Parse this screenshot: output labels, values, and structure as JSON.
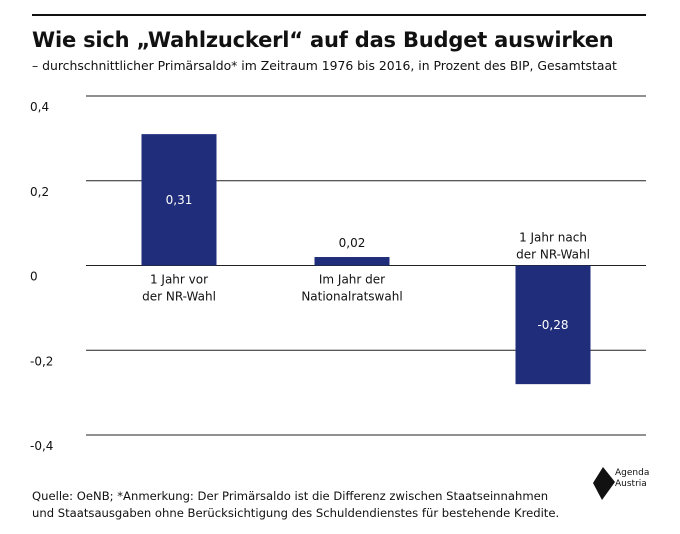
{
  "header": {
    "title": "Wie sich „Wahlzuckerl“ auf das Budget auswirken",
    "subtitle": "– durchschnittlicher Primärsaldo* im Zeitraum 1976 bis 2016, in Prozent des BIP, Gesamtstaat"
  },
  "chart_data": {
    "type": "bar",
    "categories": [
      "1 Jahr vor der NR-Wahl",
      "Im Jahr der Nationalratswahl",
      "1 Jahr nach der NR-Wahl"
    ],
    "category_lines": [
      [
        "1 Jahr vor",
        "der NR-Wahl"
      ],
      [
        "Im Jahr der",
        "Nationalratswahl"
      ],
      [
        "1 Jahr nach",
        "der NR-Wahl"
      ]
    ],
    "values": [
      0.31,
      0.02,
      -0.28
    ],
    "value_labels": [
      "0,31",
      "0,02",
      "-0,28"
    ],
    "ylim": [
      -0.4,
      0.4
    ],
    "yticks": [
      0.4,
      0.2,
      0,
      -0.2,
      -0.4
    ],
    "ytick_labels": [
      "0,4",
      "0,2",
      "0",
      "-0,2",
      "-0,4"
    ],
    "grid": true,
    "bar_color": "#1f2d7b",
    "label_inside_color": "#ffffff"
  },
  "footer": {
    "source_line1": "Quelle:  OeNB; *Anmerkung: Der Primärsaldo ist die Differenz zwischen Staatseinnahmen",
    "source_line2": "und Staatsausgaben ohne Berücksichtigung des Schuldendienstes für bestehende Kredite."
  },
  "logo": {
    "line1": "Agenda",
    "line2": "Austria"
  }
}
